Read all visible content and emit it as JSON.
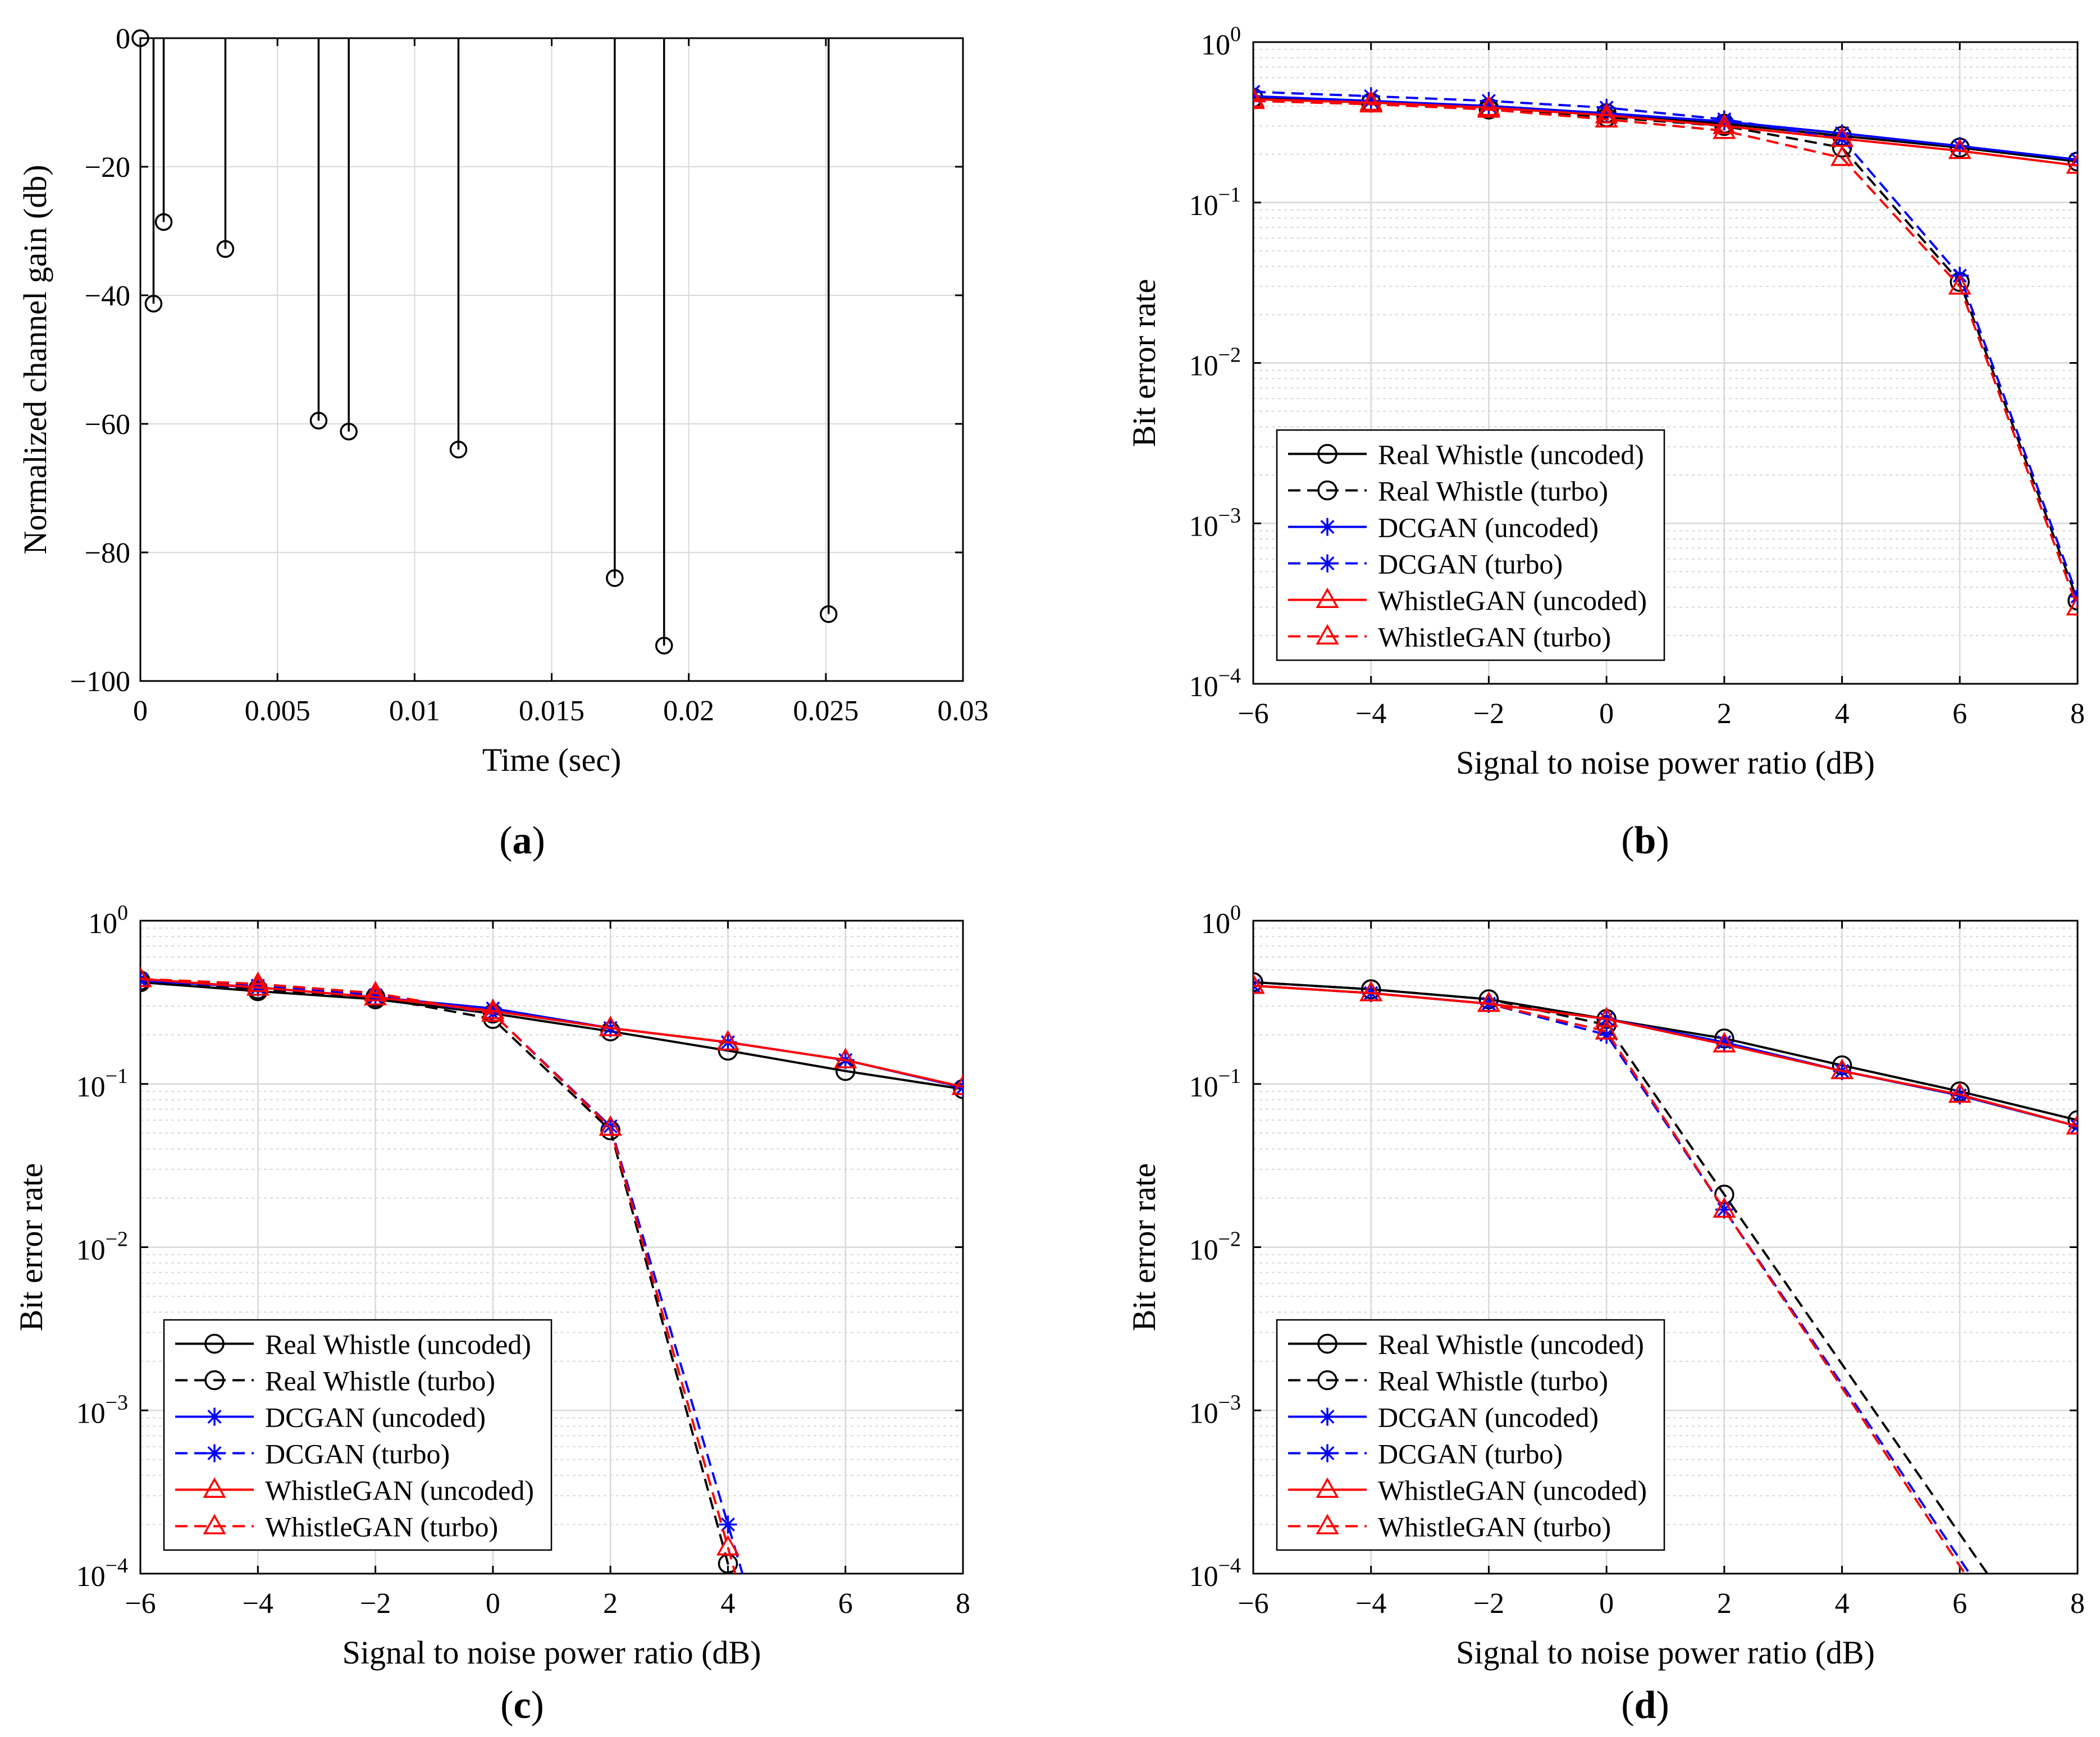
{
  "figure": {
    "panels": [
      {
        "id": "a",
        "caption_open": "(",
        "caption_letter": "a",
        "caption_close": ")"
      },
      {
        "id": "b",
        "caption_open": "(",
        "caption_letter": "b",
        "caption_close": ")"
      },
      {
        "id": "c",
        "caption_open": "(",
        "caption_letter": "c",
        "caption_close": ")"
      },
      {
        "id": "d",
        "caption_open": "(",
        "caption_letter": "d",
        "caption_close": ")"
      }
    ]
  },
  "styles": {
    "black": "#000000",
    "blue": "#0000ff",
    "red": "#ff0000",
    "grid": "#d9d9d9",
    "legend_series_order": [
      "Real Whistle (uncoded)",
      "Real Whistle (turbo)",
      "DCGAN (uncoded)",
      "DCGAN (turbo)",
      "WhistleGAN (uncoded)",
      "WhistleGAN (turbo)"
    ]
  },
  "chart_data": [
    {
      "panel": "a",
      "type": "stem",
      "title": "",
      "xlabel": "Time (sec)",
      "ylabel": "Normalized channel gain (db)",
      "xlim": [
        0,
        0.03
      ],
      "ylim": [
        -100,
        0
      ],
      "xticks": [
        0,
        0.005,
        0.01,
        0.015,
        0.02,
        0.025,
        0.03
      ],
      "xtick_labels": [
        "0",
        "0.005",
        "0.01",
        "0.015",
        "0.02",
        "0.025",
        "0.03"
      ],
      "yticks": [
        0,
        -20,
        -40,
        -60,
        -80,
        -100
      ],
      "ytick_labels": [
        "0",
        "−20",
        "−40",
        "−60",
        "−80",
        "−100"
      ],
      "grid": true,
      "x": [
        0.0,
        0.00048,
        0.00085,
        0.0031,
        0.0065,
        0.0076,
        0.0116,
        0.0173,
        0.0191,
        0.0251
      ],
      "y": [
        0,
        -41.3,
        -28.6,
        -32.8,
        -59.5,
        -61.2,
        -64.0,
        -84.0,
        -94.5,
        -89.6
      ]
    },
    {
      "panel": "b",
      "type": "line",
      "yscale": "log",
      "xlabel": "Signal to noise power ratio (dB)",
      "ylabel": "Bit error rate",
      "xlim": [
        -6,
        8
      ],
      "ylim": [
        0.0001,
        1
      ],
      "xticks": [
        -6,
        -4,
        -2,
        0,
        2,
        4,
        6,
        8
      ],
      "xtick_labels": [
        "−6",
        "−4",
        "−2",
        "0",
        "2",
        "4",
        "6",
        "8"
      ],
      "ytick_labels": [
        "10^0",
        "10^-1",
        "10^-2",
        "10^-3",
        "10^-4"
      ],
      "grid": true,
      "legend_position": "bottom-left",
      "x": [
        -6,
        -4,
        -2,
        0,
        2,
        4,
        6,
        8
      ],
      "series": [
        {
          "name": "Real Whistle (uncoded)",
          "color": "black",
          "dash": false,
          "marker": "circle",
          "values": [
            0.45,
            0.42,
            0.39,
            0.36,
            0.31,
            0.26,
            0.22,
            0.18
          ]
        },
        {
          "name": "Real Whistle (turbo)",
          "color": "black",
          "dash": true,
          "marker": "circle",
          "values": [
            0.45,
            0.42,
            0.38,
            0.34,
            0.3,
            0.22,
            0.032,
            0.00033
          ]
        },
        {
          "name": "DCGAN (uncoded)",
          "color": "blue",
          "dash": false,
          "marker": "star",
          "values": [
            0.46,
            0.43,
            0.4,
            0.36,
            0.32,
            0.27,
            0.225,
            0.185
          ]
        },
        {
          "name": "DCGAN (turbo)",
          "color": "blue",
          "dash": true,
          "marker": "star",
          "values": [
            0.49,
            0.46,
            0.43,
            0.39,
            0.33,
            0.25,
            0.035,
            0.00035
          ]
        },
        {
          "name": "WhistleGAN (uncoded)",
          "color": "red",
          "dash": false,
          "marker": "triangle",
          "values": [
            0.44,
            0.42,
            0.39,
            0.35,
            0.3,
            0.25,
            0.21,
            0.17
          ]
        },
        {
          "name": "WhistleGAN (turbo)",
          "color": "red",
          "dash": true,
          "marker": "triangle",
          "values": [
            0.43,
            0.41,
            0.38,
            0.33,
            0.28,
            0.19,
            0.03,
            0.0003
          ]
        }
      ]
    },
    {
      "panel": "c",
      "type": "line",
      "yscale": "log",
      "xlabel": "Signal to noise power ratio (dB)",
      "ylabel": "Bit error rate",
      "xlim": [
        -6,
        8
      ],
      "ylim": [
        0.0001,
        1
      ],
      "xticks": [
        -6,
        -4,
        -2,
        0,
        2,
        4,
        6,
        8
      ],
      "xtick_labels": [
        "−6",
        "−4",
        "−2",
        "0",
        "2",
        "4",
        "6",
        "8"
      ],
      "ytick_labels": [
        "10^0",
        "10^-1",
        "10^-2",
        "10^-3",
        "10^-4"
      ],
      "grid": true,
      "legend_position": "bottom-left",
      "x": [
        -6,
        -4,
        -2,
        0,
        2,
        4,
        6,
        8
      ],
      "series": [
        {
          "name": "Real Whistle (uncoded)",
          "color": "black",
          "dash": false,
          "marker": "circle",
          "values": [
            0.42,
            0.37,
            0.33,
            0.27,
            0.21,
            0.16,
            0.12,
            0.093
          ]
        },
        {
          "name": "Real Whistle (turbo)",
          "color": "black",
          "dash": true,
          "marker": "circle",
          "values": [
            0.43,
            0.38,
            0.34,
            0.25,
            0.052,
            0.000115,
            null,
            null
          ]
        },
        {
          "name": "DCGAN (uncoded)",
          "color": "blue",
          "dash": false,
          "marker": "star",
          "values": [
            0.43,
            0.39,
            0.34,
            0.29,
            0.22,
            0.18,
            0.14,
            0.095
          ]
        },
        {
          "name": "DCGAN (turbo)",
          "color": "blue",
          "dash": true,
          "marker": "star",
          "values": [
            0.44,
            0.4,
            0.35,
            0.27,
            0.055,
            0.0002,
            null,
            null
          ]
        },
        {
          "name": "WhistleGAN (uncoded)",
          "color": "red",
          "dash": false,
          "marker": "triangle",
          "values": [
            0.44,
            0.39,
            0.34,
            0.28,
            0.22,
            0.18,
            0.14,
            0.096
          ]
        },
        {
          "name": "WhistleGAN (turbo)",
          "color": "red",
          "dash": true,
          "marker": "triangle",
          "values": [
            0.44,
            0.41,
            0.36,
            0.27,
            0.054,
            0.000145,
            null,
            null
          ]
        }
      ]
    },
    {
      "panel": "d",
      "type": "line",
      "yscale": "log",
      "xlabel": "Signal to noise power ratio (dB)",
      "ylabel": "Bit error rate",
      "xlim": [
        -6,
        8
      ],
      "ylim": [
        0.0001,
        1
      ],
      "xticks": [
        -6,
        -4,
        -2,
        0,
        2,
        4,
        6,
        8
      ],
      "xtick_labels": [
        "−6",
        "−4",
        "−2",
        "0",
        "2",
        "4",
        "6",
        "8"
      ],
      "ytick_labels": [
        "10^0",
        "10^-1",
        "10^-2",
        "10^-3",
        "10^-4"
      ],
      "grid": true,
      "legend_position": "bottom-left",
      "x": [
        -6,
        -4,
        -2,
        0,
        2,
        4,
        6,
        8
      ],
      "series": [
        {
          "name": "Real Whistle (uncoded)",
          "color": "black",
          "dash": false,
          "marker": "circle",
          "values": [
            0.42,
            0.38,
            0.33,
            0.25,
            0.19,
            0.13,
            0.09,
            0.06
          ]
        },
        {
          "name": "Real Whistle (turbo)",
          "color": "black",
          "dash": true,
          "marker": "circle",
          "values": [
            0.42,
            0.38,
            0.33,
            0.23,
            0.021,
            null,
            null,
            null
          ]
        },
        {
          "name": "DCGAN (uncoded)",
          "color": "blue",
          "dash": false,
          "marker": "star",
          "values": [
            0.4,
            0.36,
            0.31,
            0.25,
            0.18,
            0.12,
            0.085,
            0.055
          ]
        },
        {
          "name": "DCGAN (turbo)",
          "color": "blue",
          "dash": true,
          "marker": "star",
          "values": [
            0.4,
            0.36,
            0.31,
            0.2,
            0.017,
            null,
            null,
            null
          ]
        },
        {
          "name": "WhistleGAN (uncoded)",
          "color": "red",
          "dash": false,
          "marker": "triangle",
          "values": [
            0.4,
            0.36,
            0.31,
            0.25,
            0.175,
            0.12,
            0.086,
            0.055
          ]
        },
        {
          "name": "WhistleGAN (turbo)",
          "color": "red",
          "dash": true,
          "marker": "triangle",
          "values": [
            0.4,
            0.36,
            0.31,
            0.21,
            0.017,
            null,
            null,
            null
          ]
        }
      ]
    }
  ]
}
